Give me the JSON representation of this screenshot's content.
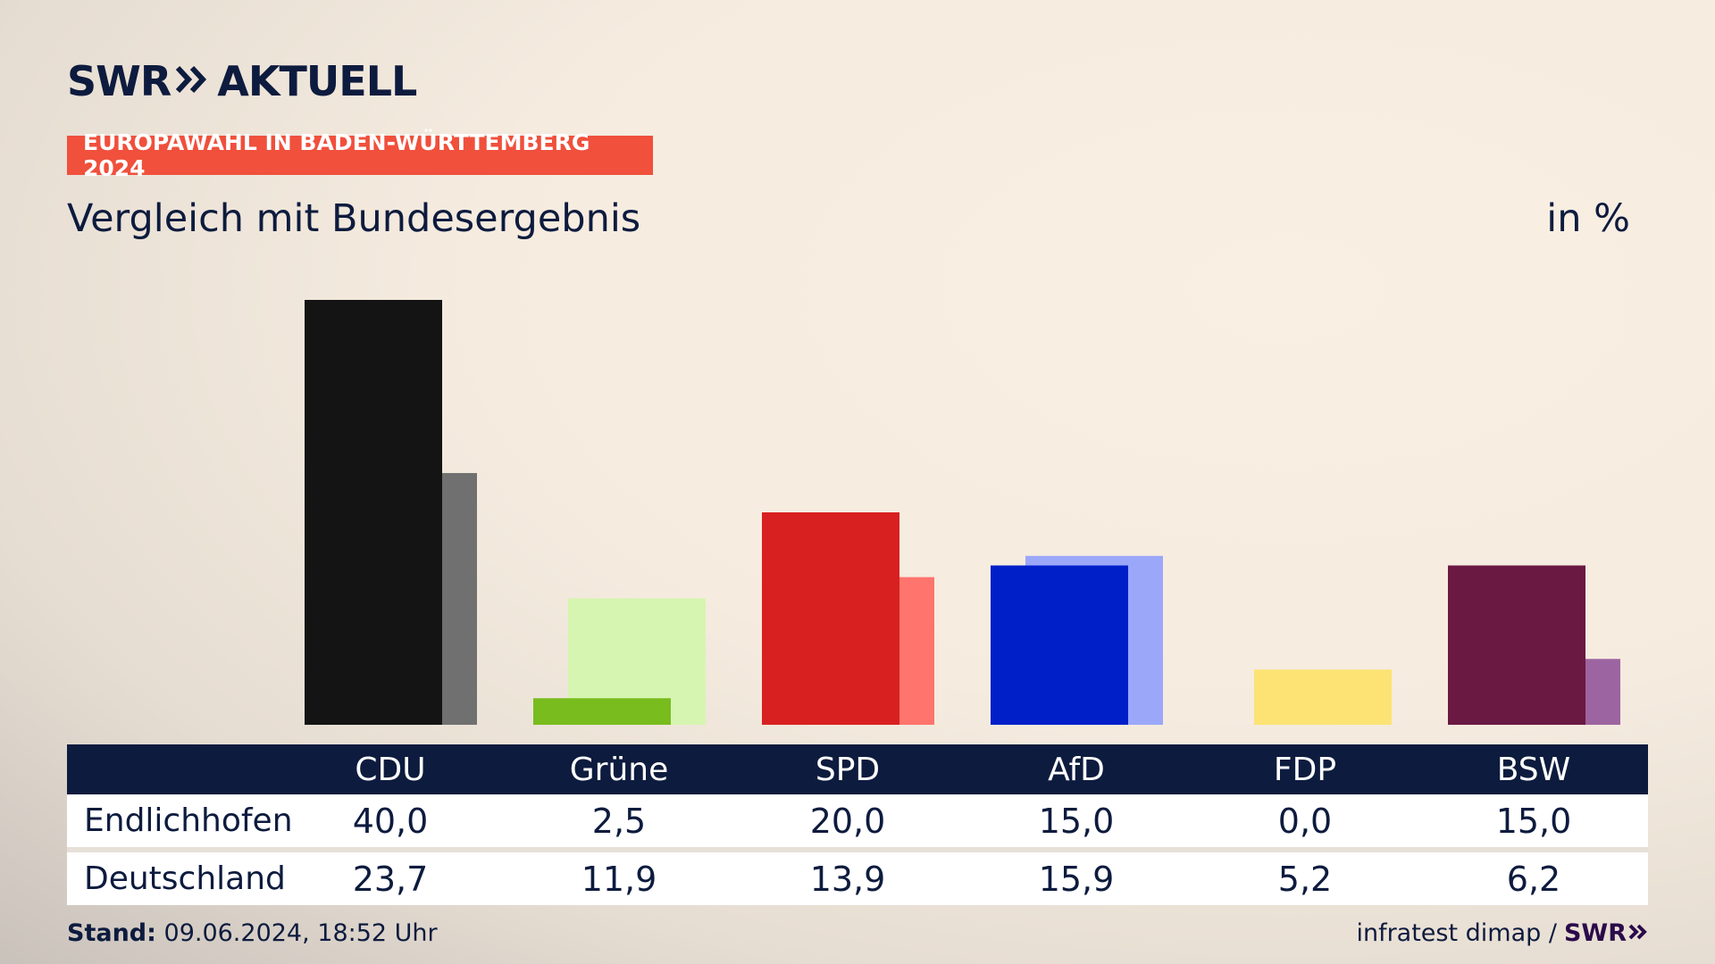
{
  "header": {
    "logo_swr": "SWR",
    "logo_aktuell": "AKTUELL",
    "badge": "EUROPAWAHL IN BADEN-WÜRTTEMBERG 2024",
    "subtitle": "Vergleich mit Bundesergebnis",
    "unit": "in %"
  },
  "table": {
    "row_labels": [
      "Endlichhofen",
      "Deutschland"
    ]
  },
  "footer": {
    "stand_label": "Stand:",
    "stand_value": "09.06.2024, 18:52 Uhr",
    "source": "infratest dimap /",
    "swr": "SWR"
  },
  "chart_data": {
    "type": "bar",
    "title": "Vergleich mit Bundesergebnis",
    "unit": "in %",
    "ylim": [
      0,
      40
    ],
    "categories": [
      "CDU",
      "Grüne",
      "SPD",
      "AfD",
      "FDP",
      "BSW"
    ],
    "series": [
      {
        "name": "Endlichhofen",
        "values": [
          40.0,
          2.5,
          20.0,
          15.0,
          0.0,
          15.0
        ],
        "labels": [
          "40,0",
          "2,5",
          "20,0",
          "15,0",
          "0,0",
          "15,0"
        ],
        "colors": [
          "#141414",
          "#78bc1e",
          "#d82020",
          "#001fc9",
          "#fce374",
          "#6a1942"
        ]
      },
      {
        "name": "Deutschland",
        "values": [
          23.7,
          11.9,
          13.9,
          15.9,
          5.2,
          6.2
        ],
        "labels": [
          "23,7",
          "11,9",
          "13,9",
          "15,9",
          "5,2",
          "6,2"
        ],
        "colors": [
          "#707070",
          "#d6f5b0",
          "#ff746c",
          "#9ba8fa",
          "#fce374",
          "#9c64a0"
        ]
      }
    ]
  }
}
